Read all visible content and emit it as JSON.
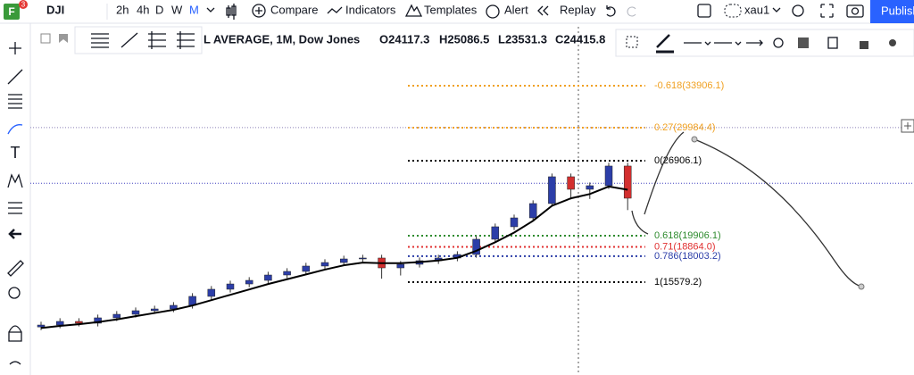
{
  "logo": {
    "letter": "F",
    "badge": "3"
  },
  "top_bar": {
    "symbol": "DJI",
    "intervals": [
      "2h",
      "4h",
      "D",
      "W",
      "M"
    ],
    "compare": "Compare",
    "indicators": "Indicators",
    "templates": "Templates",
    "alert": "Alert",
    "replay": "Replay",
    "layout_name": "xau1",
    "publish": "Publish"
  },
  "legend": {
    "title": "L AVERAGE, 1M, Dow Jones",
    "ohlc": [
      "O24117.3",
      "H25086.5",
      "L23531.3",
      "C24415.8"
    ]
  },
  "chart_data": {
    "type": "candlestick",
    "up_color": "#2c3ea8",
    "down_color": "#d32f2f",
    "candles": [
      [
        11400,
        11880,
        11100,
        11580
      ],
      [
        11580,
        12215,
        11280,
        11915
      ],
      [
        11915,
        12215,
        11450,
        11750
      ],
      [
        11750,
        12550,
        11450,
        12250
      ],
      [
        12250,
        12880,
        11950,
        12580
      ],
      [
        12580,
        13215,
        12280,
        12915
      ],
      [
        12915,
        13380,
        12615,
        13080
      ],
      [
        13080,
        13715,
        12780,
        13415
      ],
      [
        13415,
        14550,
        13115,
        14250
      ],
      [
        14250,
        15215,
        13950,
        14915
      ],
      [
        14915,
        15710,
        14615,
        15410
      ],
      [
        15410,
        16045,
        15110,
        15745
      ],
      [
        15745,
        16545,
        15445,
        16245
      ],
      [
        16245,
        16880,
        15945,
        16580
      ],
      [
        16580,
        17380,
        16280,
        17080
      ],
      [
        17080,
        17710,
        16780,
        17410
      ],
      [
        17410,
        18045,
        17110,
        17745
      ],
      [
        17745,
        18130,
        17445,
        17830
      ],
      [
        17830,
        18130,
        15900,
        16910
      ],
      [
        16910,
        17545,
        16200,
        17245
      ],
      [
        17245,
        17880,
        16945,
        17580
      ],
      [
        17580,
        18130,
        17280,
        17830
      ],
      [
        17830,
        18460,
        17530,
        18160
      ],
      [
        18160,
        19880,
        17860,
        19580
      ],
      [
        19580,
        21045,
        19280,
        20745
      ],
      [
        20745,
        21875,
        20445,
        21575
      ],
      [
        21575,
        23210,
        21275,
        22910
      ],
      [
        22910,
        25710,
        22610,
        25410
      ],
      [
        25410,
        25710,
        23300,
        24240
      ],
      [
        24240,
        24875,
        23340,
        24575
      ],
      [
        24575,
        26710,
        24275,
        26410
      ],
      [
        26410,
        26710,
        22300,
        23410
      ]
    ],
    "ma": {
      "color": "#000000",
      "values": [
        11300,
        11500,
        11650,
        11850,
        12100,
        12400,
        12700,
        13000,
        13400,
        13900,
        14400,
        14900,
        15400,
        15850,
        16300,
        16750,
        17150,
        17400,
        17350,
        17350,
        17450,
        17600,
        17850,
        18500,
        19300,
        20200,
        21300,
        22700,
        23400,
        23800,
        24500,
        24200
      ]
    },
    "fib_levels": [
      {
        "label": "-0.618(33906.1)",
        "price": 33906.1,
        "color": "#f0a020"
      },
      {
        "label": "0.27(29984.4)",
        "price": 29984.4,
        "color": "#f0a020"
      },
      {
        "label": "0(26906.1)",
        "price": 26906.1,
        "color": "#000000"
      },
      {
        "label": "0.618(19906.1)",
        "price": 19906.1,
        "color": "#2e8b2e"
      },
      {
        "label": "0.71(18864.0)",
        "price": 18864.0,
        "color": "#e03030"
      },
      {
        "label": "0.786(18003.2)",
        "price": 18003.2,
        "color": "#2c3ea8"
      },
      {
        "label": "1(15579.2)",
        "price": 15579.2,
        "color": "#000000"
      }
    ],
    "horizontal_lines": [
      {
        "price": 30000,
        "color": "#8a80b8"
      },
      {
        "price": 24800,
        "color": "#4040c0"
      }
    ]
  }
}
